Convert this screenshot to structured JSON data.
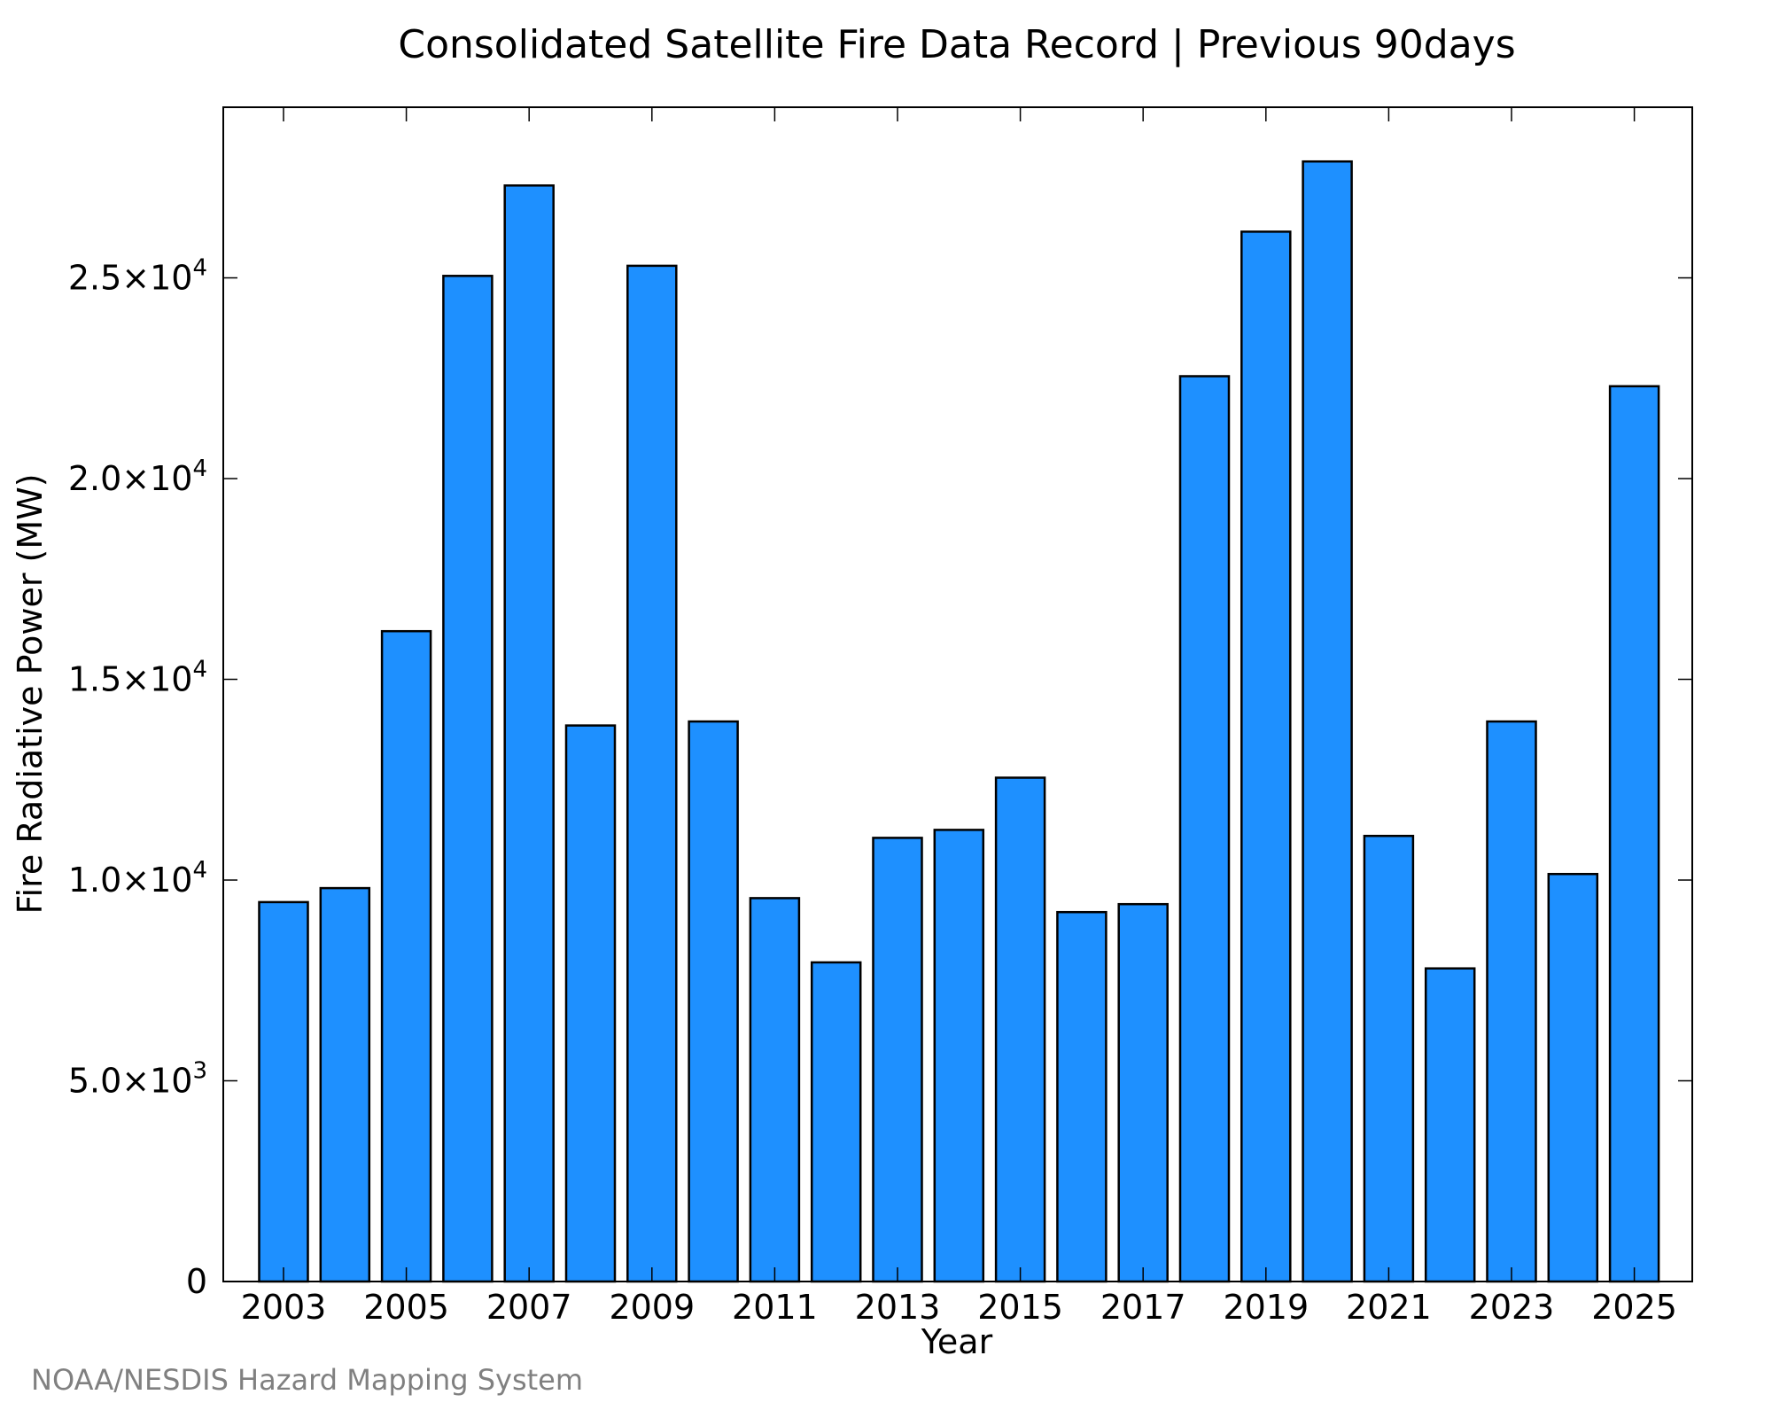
{
  "chart_data": {
    "type": "bar",
    "title": "Consolidated Satellite Fire Data Record | Previous 90days",
    "xlabel": "Year",
    "ylabel": "Fire Radiative Power (MW)",
    "categories": [
      "2003",
      "2004",
      "2005",
      "2006",
      "2007",
      "2008",
      "2009",
      "2010",
      "2011",
      "2012",
      "2013",
      "2014",
      "2015",
      "2016",
      "2017",
      "2018",
      "2019",
      "2020",
      "2021",
      "2022",
      "2023",
      "2024",
      "2025"
    ],
    "values": [
      9450,
      9800,
      16200,
      25050,
      27300,
      13850,
      25300,
      13950,
      9550,
      7950,
      11050,
      11250,
      12550,
      9200,
      9400,
      22550,
      26150,
      27900,
      11100,
      7800,
      13950,
      10150,
      22300
    ],
    "ylim": [
      0,
      29250
    ],
    "y_ticks": [
      {
        "value": 0,
        "mantissa": "0",
        "exponent": ""
      },
      {
        "value": 5000,
        "mantissa": "5.0×10",
        "exponent": "3"
      },
      {
        "value": 10000,
        "mantissa": "1.0×10",
        "exponent": "4"
      },
      {
        "value": 15000,
        "mantissa": "1.5×10",
        "exponent": "4"
      },
      {
        "value": 20000,
        "mantissa": "2.0×10",
        "exponent": "4"
      },
      {
        "value": 25000,
        "mantissa": "2.5×10",
        "exponent": "4"
      }
    ],
    "x_tick_labels": [
      "2003",
      "2005",
      "2007",
      "2009",
      "2011",
      "2013",
      "2015",
      "2017",
      "2019",
      "2021",
      "2023",
      "2025"
    ],
    "grid": false,
    "bar_color": "#1e90ff",
    "bar_edge_color": "#000000"
  },
  "credit": "NOAA/NESDIS Hazard Mapping System"
}
